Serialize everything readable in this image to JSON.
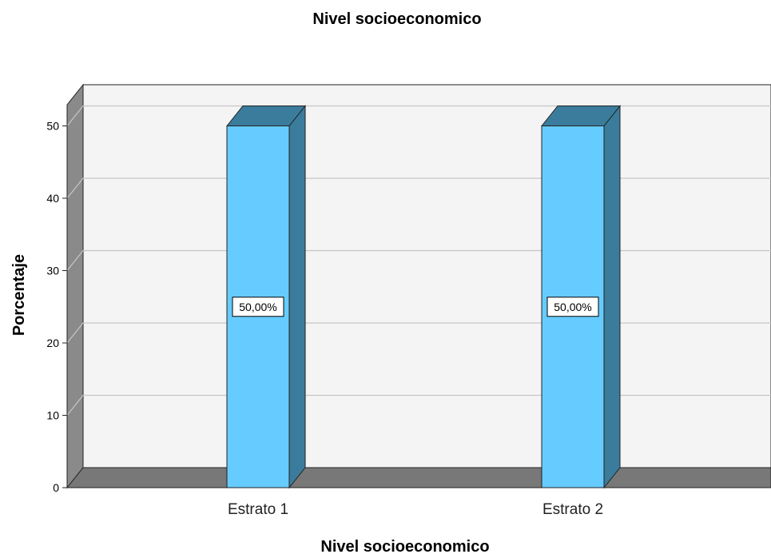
{
  "chart_data": {
    "type": "bar",
    "title": "Nivel socioeconomico",
    "xlabel": "Nivel socioeconomico",
    "ylabel": "Porcentaje",
    "categories": [
      "Estrato 1",
      "Estrato 2"
    ],
    "values": [
      50,
      50
    ],
    "data_labels": [
      "50,00%",
      "50,00%"
    ],
    "y_ticks": [
      "0",
      "10",
      "20",
      "30",
      "40",
      "50"
    ],
    "ylim": [
      0,
      53
    ],
    "grid": true,
    "style": "3d",
    "colors": {
      "bar_front": "#66ccff",
      "bar_side": "#3b7c9c",
      "bar_top": "#3b7c9c",
      "wall": "#f4f4f4",
      "wall_side": "#8a8a8a",
      "floor": "#787878",
      "gridline": "#c6c6c6"
    }
  }
}
